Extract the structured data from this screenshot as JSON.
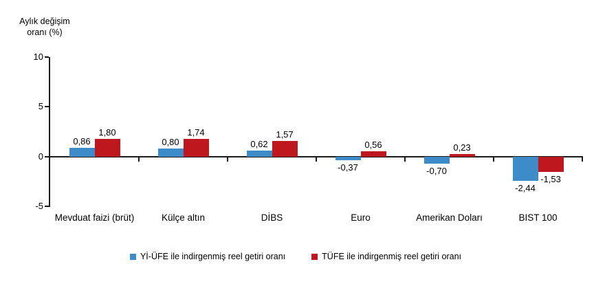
{
  "chart": {
    "y_axis_title_line1": "Aylık değişim",
    "y_axis_title_line2": "oranı (%)"
  },
  "chart_data": {
    "type": "bar",
    "title": "Aylık değişim oranı (%)",
    "xlabel": "",
    "ylabel": "Aylık değişim oranı (%)",
    "categories": [
      "Mevduat faizi (brüt)",
      "Külçe altın",
      "DİBS",
      "Euro",
      "Amerikan Doları",
      "BIST 100"
    ],
    "series": [
      {
        "name": "Yİ-ÜFE ile indirgenmiş reel getiri oranı",
        "color": "#3d8bc8",
        "values": [
          0.86,
          0.8,
          0.62,
          -0.37,
          -0.7,
          -2.44
        ],
        "labels": [
          "0,86",
          "0,80",
          "0,62",
          "-0,37",
          "-0,70",
          "-2,44"
        ]
      },
      {
        "name": "TÜFE ile indirgenmiş reel getiri oranı",
        "color": "#be181e",
        "values": [
          1.8,
          1.74,
          1.57,
          0.56,
          0.23,
          -1.53
        ],
        "labels": [
          "1,80",
          "1,74",
          "1,57",
          "0,56",
          "0,23",
          "-1,53"
        ]
      }
    ],
    "ylim": [
      -5,
      10
    ],
    "y_ticks": [
      {
        "value": 10,
        "label": "10"
      },
      {
        "value": 5,
        "label": "5"
      },
      {
        "value": 0,
        "label": "0"
      },
      {
        "value": -5,
        "label": "-5"
      }
    ],
    "grid": false,
    "legend_position": "bottom"
  }
}
